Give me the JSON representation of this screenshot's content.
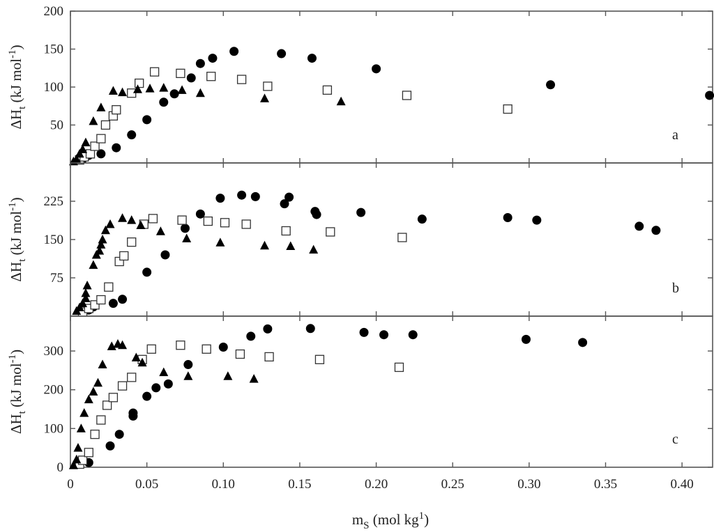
{
  "chart_data": [
    {
      "type": "scatter",
      "panel_label": "a",
      "ylabel": "ΔHt (kJ mol-1)",
      "ylabel_main": "ΔH",
      "ylabel_sub": "t",
      "ylabel_rest": " (kJ mol",
      "ylabel_sup": "-1",
      "ylabel_close": ")",
      "ylim": [
        0,
        200
      ],
      "yticks": [
        50,
        100,
        150,
        200
      ],
      "series": [
        {
          "marker": "filled-circle",
          "points": [
            [
              0.008,
              5
            ],
            [
              0.012,
              10
            ],
            [
              0.02,
              12
            ],
            [
              0.03,
              20
            ],
            [
              0.04,
              37
            ],
            [
              0.05,
              57
            ],
            [
              0.061,
              80
            ],
            [
              0.068,
              91
            ],
            [
              0.079,
              112
            ],
            [
              0.085,
              131
            ],
            [
              0.093,
              138
            ],
            [
              0.107,
              147
            ],
            [
              0.138,
              144
            ],
            [
              0.158,
              138
            ],
            [
              0.2,
              124
            ],
            [
              0.314,
              103
            ],
            [
              0.418,
              89
            ]
          ]
        },
        {
          "marker": "open-square",
          "points": [
            [
              0.006,
              4
            ],
            [
              0.009,
              8
            ],
            [
              0.013,
              12
            ],
            [
              0.016,
              22
            ],
            [
              0.02,
              32
            ],
            [
              0.023,
              50
            ],
            [
              0.028,
              62
            ],
            [
              0.03,
              70
            ],
            [
              0.04,
              92
            ],
            [
              0.045,
              105
            ],
            [
              0.055,
              120
            ],
            [
              0.072,
              118
            ],
            [
              0.092,
              114
            ],
            [
              0.112,
              110
            ],
            [
              0.129,
              101
            ],
            [
              0.168,
              96
            ],
            [
              0.22,
              89
            ],
            [
              0.286,
              71
            ]
          ]
        },
        {
          "marker": "filled-triangle",
          "points": [
            [
              0.002,
              2
            ],
            [
              0.004,
              5
            ],
            [
              0.006,
              12
            ],
            [
              0.008,
              18
            ],
            [
              0.01,
              27
            ],
            [
              0.015,
              55
            ],
            [
              0.02,
              73
            ],
            [
              0.028,
              95
            ],
            [
              0.034,
              93
            ],
            [
              0.044,
              97
            ],
            [
              0.052,
              98
            ],
            [
              0.061,
              99
            ],
            [
              0.073,
              96
            ],
            [
              0.085,
              92
            ],
            [
              0.127,
              85
            ],
            [
              0.177,
              81
            ]
          ]
        }
      ]
    },
    {
      "type": "scatter",
      "panel_label": "b",
      "ylabel": "ΔHt (kJ mol-1)",
      "ylabel_main": "ΔH",
      "ylabel_sub": "t",
      "ylabel_rest": " (kJ mol",
      "ylabel_sup": "-1",
      "ylabel_close": ")",
      "ylim": [
        0,
        300
      ],
      "yticks": [
        75,
        150,
        225
      ],
      "series": [
        {
          "marker": "filled-circle",
          "points": [
            [
              0.012,
              12
            ],
            [
              0.015,
              18
            ],
            [
              0.028,
              25
            ],
            [
              0.034,
              33
            ],
            [
              0.05,
              86
            ],
            [
              0.062,
              120
            ],
            [
              0.075,
              172
            ],
            [
              0.085,
              200
            ],
            [
              0.098,
              231
            ],
            [
              0.112,
              237
            ],
            [
              0.121,
              234
            ],
            [
              0.14,
              220
            ],
            [
              0.143,
              233
            ],
            [
              0.16,
              205
            ],
            [
              0.161,
              199
            ],
            [
              0.19,
              203
            ],
            [
              0.23,
              190
            ],
            [
              0.286,
              193
            ],
            [
              0.305,
              188
            ],
            [
              0.372,
              176
            ],
            [
              0.383,
              168
            ]
          ]
        },
        {
          "marker": "open-square",
          "points": [
            [
              0.008,
              8
            ],
            [
              0.012,
              15
            ],
            [
              0.016,
              22
            ],
            [
              0.02,
              32
            ],
            [
              0.025,
              57
            ],
            [
              0.032,
              107
            ],
            [
              0.035,
              118
            ],
            [
              0.04,
              145
            ],
            [
              0.048,
              180
            ],
            [
              0.054,
              191
            ],
            [
              0.073,
              188
            ],
            [
              0.09,
              186
            ],
            [
              0.101,
              183
            ],
            [
              0.115,
              180
            ],
            [
              0.141,
              167
            ],
            [
              0.17,
              165
            ],
            [
              0.217,
              154
            ]
          ]
        },
        {
          "marker": "filled-triangle",
          "points": [
            [
              0.004,
              10
            ],
            [
              0.006,
              17
            ],
            [
              0.008,
              25
            ],
            [
              0.01,
              35
            ],
            [
              0.01,
              45
            ],
            [
              0.011,
              60
            ],
            [
              0.015,
              100
            ],
            [
              0.017,
              120
            ],
            [
              0.019,
              128
            ],
            [
              0.02,
              140
            ],
            [
              0.021,
              150
            ],
            [
              0.023,
              168
            ],
            [
              0.026,
              180
            ],
            [
              0.034,
              192
            ],
            [
              0.04,
              188
            ],
            [
              0.046,
              178
            ],
            [
              0.059,
              166
            ],
            [
              0.076,
              152
            ],
            [
              0.098,
              144
            ],
            [
              0.127,
              138
            ],
            [
              0.144,
              137
            ],
            [
              0.159,
              130
            ]
          ]
        }
      ]
    },
    {
      "type": "scatter",
      "panel_label": "c",
      "ylabel": "ΔHt (kJ mol-1)",
      "ylabel_main": "ΔH",
      "ylabel_sub": "t",
      "ylabel_rest": " (kJ mol",
      "ylabel_sup": "-1",
      "ylabel_close": ")",
      "ylim": [
        0,
        390
      ],
      "yticks": [
        0,
        100,
        200,
        300
      ],
      "series": [
        {
          "marker": "filled-circle",
          "points": [
            [
              0.012,
              12
            ],
            [
              0.026,
              55
            ],
            [
              0.032,
              85
            ],
            [
              0.041,
              132
            ],
            [
              0.041,
              140
            ],
            [
              0.05,
              183
            ],
            [
              0.056,
              205
            ],
            [
              0.064,
              215
            ],
            [
              0.077,
              265
            ],
            [
              0.1,
              310
            ],
            [
              0.118,
              338
            ],
            [
              0.129,
              357
            ],
            [
              0.157,
              358
            ],
            [
              0.192,
              348
            ],
            [
              0.205,
              342
            ],
            [
              0.224,
              342
            ],
            [
              0.298,
              330
            ],
            [
              0.335,
              322
            ]
          ]
        },
        {
          "marker": "open-square",
          "points": [
            [
              0.006,
              8
            ],
            [
              0.008,
              18
            ],
            [
              0.012,
              38
            ],
            [
              0.016,
              85
            ],
            [
              0.02,
              122
            ],
            [
              0.024,
              160
            ],
            [
              0.028,
              180
            ],
            [
              0.034,
              210
            ],
            [
              0.04,
              232
            ],
            [
              0.047,
              278
            ],
            [
              0.053,
              305
            ],
            [
              0.072,
              315
            ],
            [
              0.089,
              305
            ],
            [
              0.111,
              292
            ],
            [
              0.13,
              285
            ],
            [
              0.163,
              278
            ],
            [
              0.215,
              258
            ]
          ]
        },
        {
          "marker": "filled-triangle",
          "points": [
            [
              0.002,
              5
            ],
            [
              0.004,
              20
            ],
            [
              0.005,
              50
            ],
            [
              0.007,
              100
            ],
            [
              0.009,
              140
            ],
            [
              0.012,
              175
            ],
            [
              0.015,
              195
            ],
            [
              0.018,
              218
            ],
            [
              0.021,
              265
            ],
            [
              0.027,
              312
            ],
            [
              0.031,
              318
            ],
            [
              0.034,
              315
            ],
            [
              0.043,
              283
            ],
            [
              0.047,
              270
            ],
            [
              0.061,
              245
            ],
            [
              0.077,
              235
            ],
            [
              0.103,
              235
            ],
            [
              0.12,
              228
            ]
          ]
        }
      ]
    }
  ],
  "x_axis": {
    "xlim": [
      0,
      0.42
    ],
    "xticks": [
      "0",
      "0.05",
      "0.10",
      "0.15",
      "0.20",
      "0.25",
      "0.30",
      "0.35",
      "0.40"
    ],
    "xtick_values": [
      0,
      0.05,
      0.1,
      0.15,
      0.2,
      0.25,
      0.3,
      0.35,
      0.4
    ],
    "xlabel": "mS (mol kg1)",
    "xlabel_main": "m",
    "xlabel_sub": "S",
    "xlabel_rest": " (mol kg",
    "xlabel_sup": "1",
    "xlabel_close": ")"
  },
  "colors": {
    "marker": "#000000",
    "axis": "#555555",
    "text": "#222222",
    "background": "#ffffff"
  }
}
